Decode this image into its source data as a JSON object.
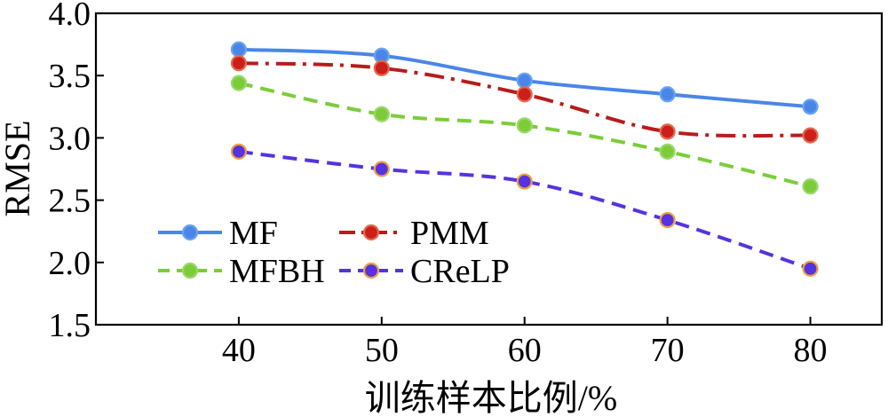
{
  "chart_data": {
    "type": "line",
    "xlabel": "训练样本比例/%",
    "ylabel": "RMSE",
    "x": [
      40,
      50,
      60,
      70,
      80
    ],
    "x_tick_labels": [
      "40",
      "50",
      "60",
      "70",
      "80"
    ],
    "xlim": [
      30,
      85
    ],
    "ylim": [
      1.5,
      4.0
    ],
    "y_ticks": [
      1.5,
      2.0,
      2.5,
      3.0,
      3.5,
      4.0
    ],
    "y_tick_labels": [
      "1.5",
      "2.0",
      "2.5",
      "3.0",
      "3.5",
      "4.0"
    ],
    "grid": false,
    "legend_position": "lower-left",
    "series": [
      {
        "name": "MF",
        "values": [
          3.71,
          3.66,
          3.46,
          3.35,
          3.25
        ],
        "line_color": "#4a86e8",
        "marker_color": "#4a86e8",
        "marker_edge": "#6aa4f0",
        "dash": "solid",
        "smooth": true
      },
      {
        "name": "PMM",
        "values": [
          3.6,
          3.56,
          3.35,
          3.05,
          3.02
        ],
        "line_color": "#b71c1c",
        "marker_color": "#cc1f1a",
        "marker_edge": "#e06a50",
        "dash": "dashdot",
        "smooth": true
      },
      {
        "name": "MFBH",
        "values": [
          3.44,
          3.19,
          3.1,
          2.89,
          2.61
        ],
        "line_color": "#7ccc3a",
        "marker_color": "#7ccc3a",
        "marker_edge": "#9ad86a",
        "dash": "dashed",
        "smooth": true
      },
      {
        "name": "CReLP",
        "values": [
          2.89,
          2.75,
          2.65,
          2.34,
          1.95
        ],
        "line_color": "#5533e0",
        "marker_color": "#5533e0",
        "marker_edge": "#f0a040",
        "dash": "dashed",
        "smooth": true
      }
    ]
  }
}
